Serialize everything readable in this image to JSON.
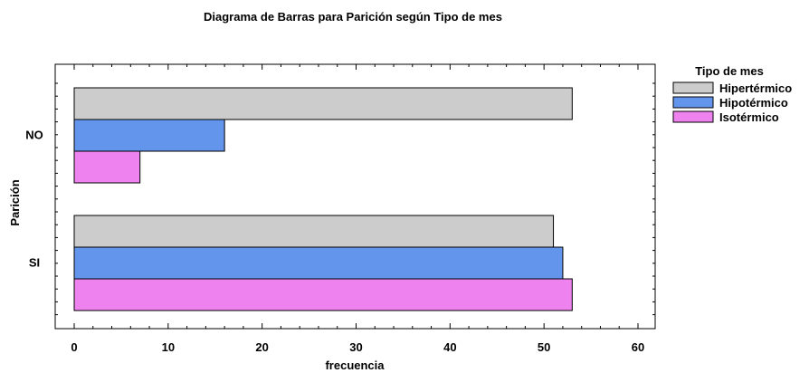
{
  "chart_data": {
    "type": "bar",
    "orientation": "horizontal",
    "title": "Diagrama de Barras para Parición según Tipo de mes",
    "xlabel": "frecuencia",
    "ylabel": "Parición",
    "categories": [
      "NO",
      "SI"
    ],
    "series": [
      {
        "name": "Hipertérmico",
        "values": [
          53,
          51
        ],
        "color": "#cccccc"
      },
      {
        "name": "Hipotérmico",
        "values": [
          16,
          52
        ],
        "color": "#6495ed"
      },
      {
        "name": "Isotérmico",
        "values": [
          7,
          53
        ],
        "color": "#ee82ee"
      }
    ],
    "xlim": [
      0,
      60
    ],
    "xticks": [
      "0",
      "10",
      "20",
      "30",
      "40",
      "50",
      "60"
    ],
    "grid": false,
    "legend": {
      "title": "Tipo de mes",
      "position": "right"
    }
  }
}
